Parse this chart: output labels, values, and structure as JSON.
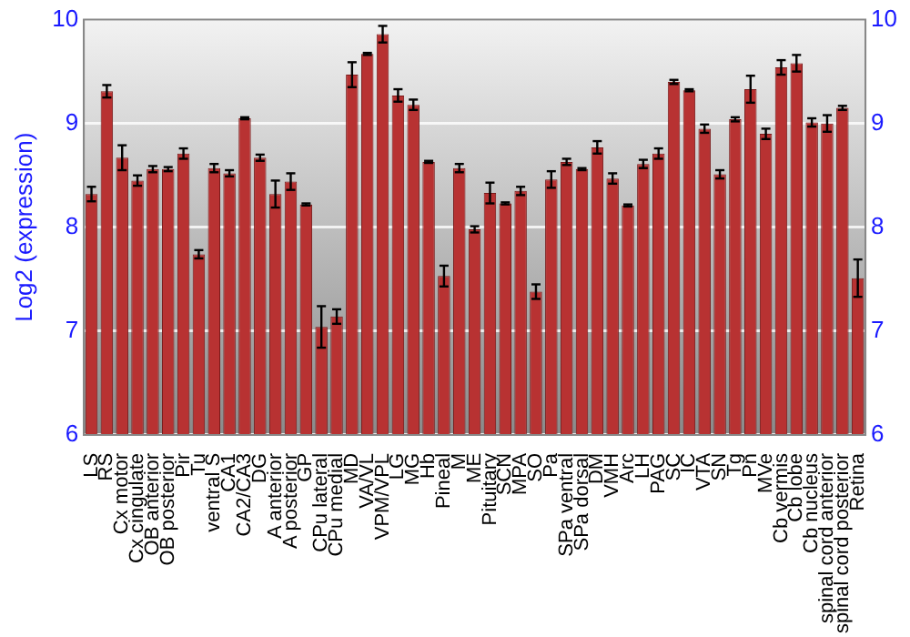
{
  "chart_data": {
    "type": "bar",
    "ylabel": "Log2 (expression)",
    "categories": [
      "LS",
      "RS",
      "Cx motor",
      "Cx cingulate",
      "OB anterior",
      "OB posterior",
      "Pir",
      "Tu",
      "ventral S",
      "CA1",
      "CA2/CA3",
      "DG",
      "A anterior",
      "A posterior",
      "GP",
      "CPu lateral",
      "CPu medial",
      "MD",
      "VA/VL",
      "VPM/VPL",
      "LG",
      "MG",
      "Hb",
      "Pineal",
      "M",
      "ME",
      "Pituitary",
      "SCN",
      "MPA",
      "SO",
      "Pa",
      "SPa ventral",
      "SPa dorsal",
      "DM",
      "VMH",
      "Arc",
      "LH",
      "PAG",
      "SC",
      "IC",
      "VTA",
      "SN",
      "Tg",
      "Pn",
      "MVe",
      "Cb vermis",
      "Cb lobe",
      "Cb nucleus",
      "spinal cord anterior",
      "spinal cord posterior",
      "Retina"
    ],
    "values": [
      8.32,
      9.31,
      8.67,
      8.45,
      8.56,
      8.56,
      8.71,
      7.74,
      8.57,
      8.52,
      9.05,
      8.67,
      8.32,
      8.44,
      8.22,
      7.04,
      7.14,
      9.47,
      9.67,
      9.86,
      9.27,
      9.18,
      8.63,
      7.53,
      8.57,
      7.98,
      8.33,
      8.23,
      8.35,
      7.38,
      8.46,
      8.63,
      8.56,
      8.77,
      8.47,
      8.21,
      8.61,
      8.71,
      9.4,
      9.32,
      8.95,
      8.51,
      9.04,
      9.33,
      8.9,
      9.54,
      9.58,
      9.01,
      9.0,
      9.15,
      7.51
    ],
    "errors": [
      0.07,
      0.06,
      0.12,
      0.05,
      0.03,
      0.02,
      0.05,
      0.04,
      0.04,
      0.03,
      0.01,
      0.03,
      0.13,
      0.08,
      0.01,
      0.2,
      0.07,
      0.12,
      0.01,
      0.08,
      0.06,
      0.05,
      0.01,
      0.1,
      0.04,
      0.03,
      0.1,
      0.01,
      0.04,
      0.07,
      0.08,
      0.03,
      0.01,
      0.06,
      0.05,
      0.01,
      0.04,
      0.05,
      0.02,
      0.01,
      0.04,
      0.04,
      0.02,
      0.13,
      0.05,
      0.07,
      0.08,
      0.04,
      0.08,
      0.02,
      0.18
    ],
    "color": "#b83232",
    "ylim": [
      6,
      10
    ],
    "yticks": [
      6,
      7,
      8,
      9,
      10
    ],
    "y2lim": [
      6,
      10
    ],
    "y2ticks": [
      6,
      7,
      8,
      9,
      10
    ],
    "grid": "y",
    "legend": false
  }
}
